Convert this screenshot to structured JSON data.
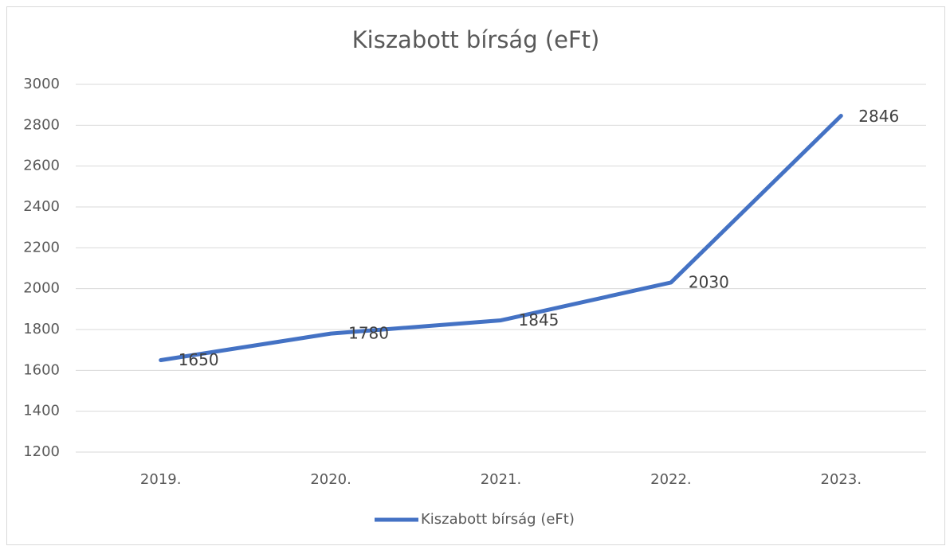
{
  "chart_data": {
    "type": "line",
    "title": "Kiszabott bírság (eFt)",
    "categories": [
      "2019.",
      "2020.",
      "2021.",
      "2022.",
      "2023."
    ],
    "series": [
      {
        "name": "Kiszabott bírság (eFt)",
        "color": "#4472c4",
        "values": [
          1650,
          1780,
          1845,
          2030,
          2846
        ]
      }
    ],
    "ylim": [
      1200,
      3000
    ],
    "yticks": [
      1200,
      1400,
      1600,
      1800,
      2000,
      2200,
      2400,
      2600,
      2800,
      3000
    ],
    "grid": true,
    "legend": "bottom",
    "data_labels": true
  }
}
